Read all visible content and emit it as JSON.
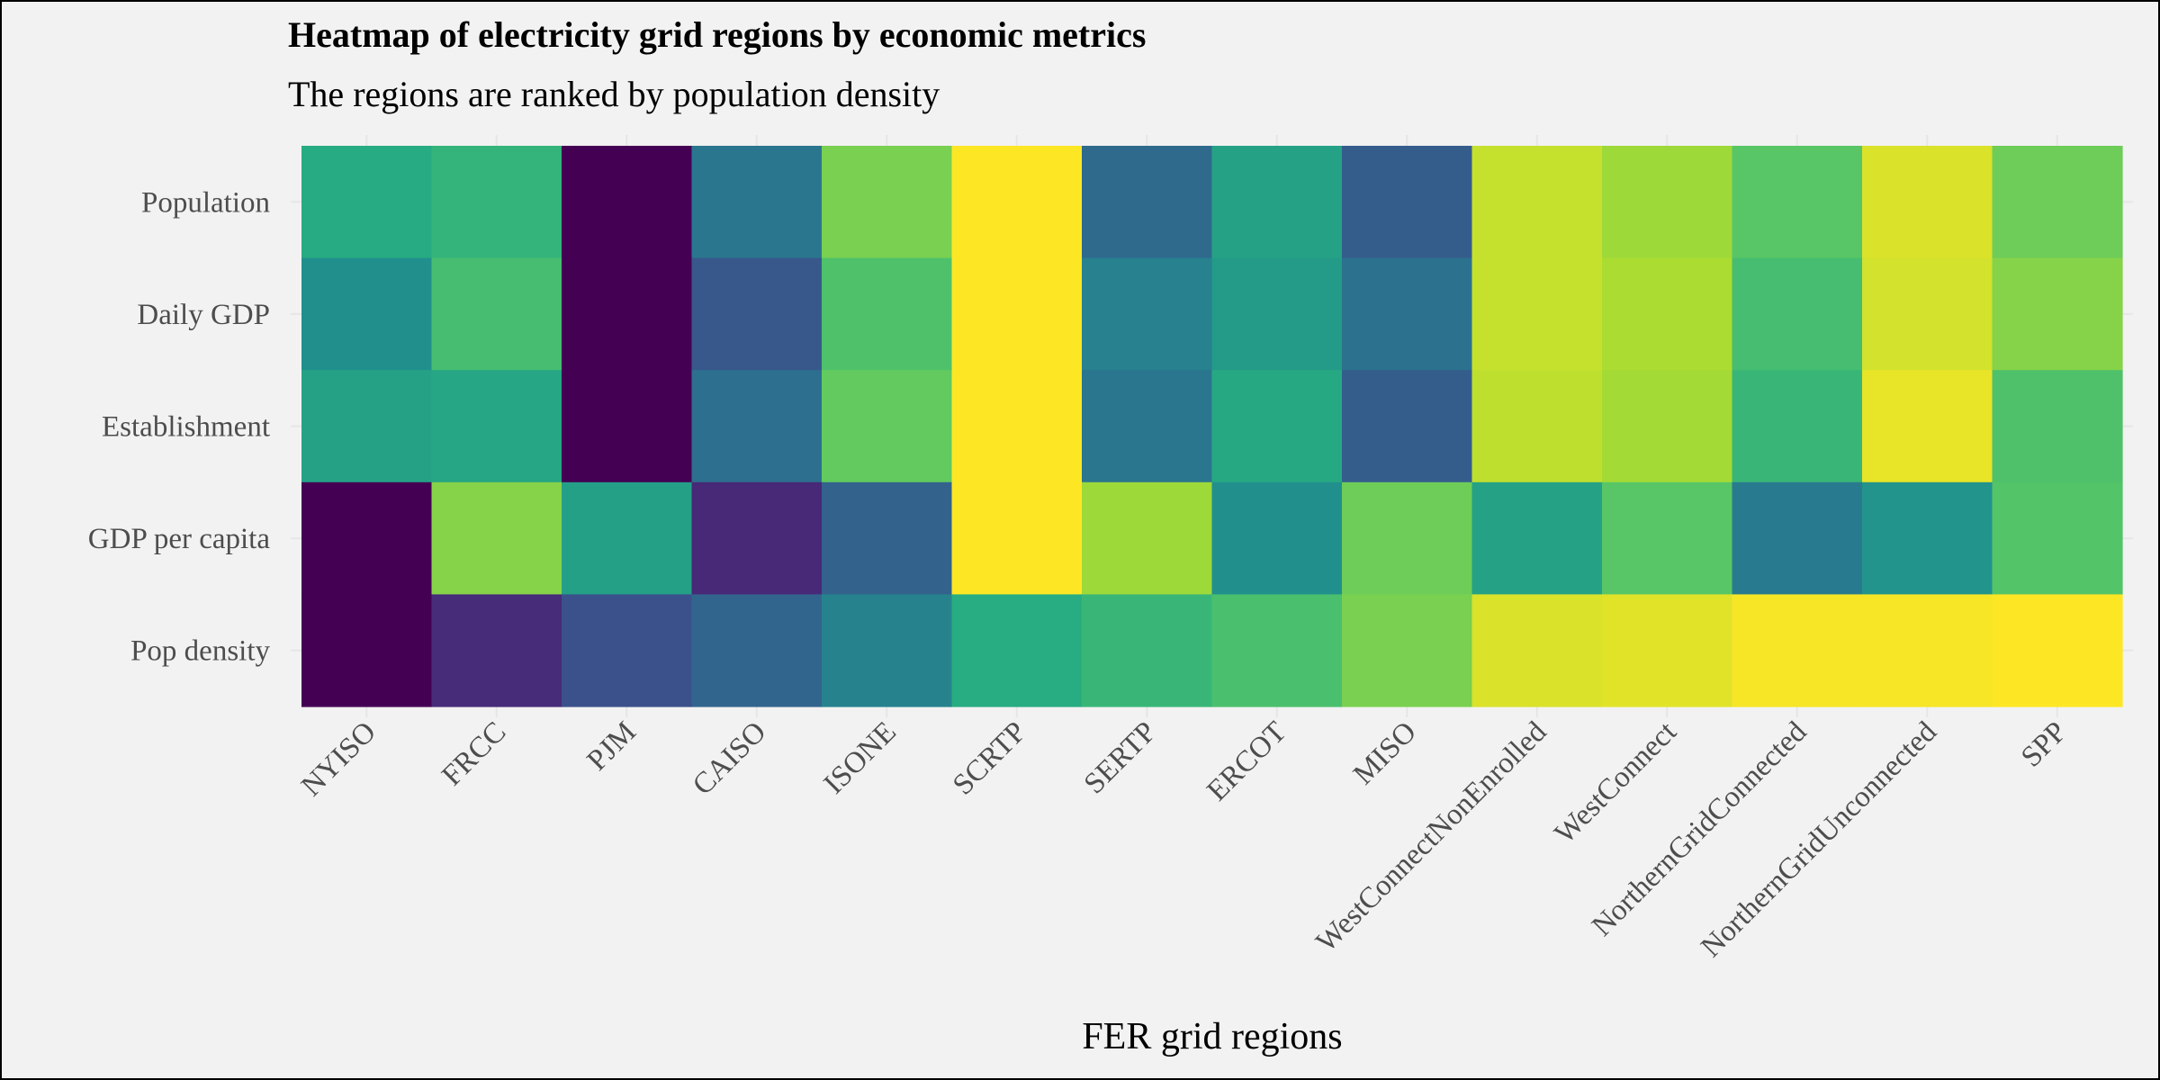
{
  "chart_data": {
    "type": "heatmap",
    "title": "Heatmap of electricity grid regions by economic metrics",
    "subtitle": "The regions are ranked by population density",
    "xlabel": "FER grid regions",
    "ylabel": "",
    "x_categories": [
      "NYISO",
      "FRCC",
      "PJM",
      "CAISO",
      "ISONE",
      "SCRTP",
      "SERTP",
      "ERCOT",
      "MISO",
      "WestConnectNonEnrolled",
      "WestConnect",
      "NorthernGridConnected",
      "NorthernGridUnconnected",
      "SPP"
    ],
    "y_categories": [
      "Population",
      "Daily GDP",
      "Establishment",
      "GDP per capita",
      "Pop density"
    ],
    "colormap": "viridis",
    "value_scale": [
      0,
      1
    ],
    "grid": true,
    "legend": "none",
    "values": [
      [
        0.62,
        0.66,
        0.0,
        0.4,
        0.8,
        1.0,
        0.35,
        0.58,
        0.3,
        0.92,
        0.86,
        0.74,
        0.95,
        0.78
      ],
      [
        0.5,
        0.7,
        0.0,
        0.28,
        0.72,
        1.0,
        0.44,
        0.55,
        0.38,
        0.92,
        0.88,
        0.7,
        0.94,
        0.82
      ],
      [
        0.58,
        0.6,
        0.0,
        0.37,
        0.76,
        1.0,
        0.4,
        0.61,
        0.3,
        0.91,
        0.87,
        0.67,
        0.97,
        0.72
      ],
      [
        0.0,
        0.82,
        0.57,
        0.12,
        0.32,
        1.0,
        0.86,
        0.5,
        0.78,
        0.58,
        0.74,
        0.42,
        0.52,
        0.73
      ],
      [
        0.0,
        0.13,
        0.25,
        0.33,
        0.45,
        0.63,
        0.67,
        0.71,
        0.8,
        0.95,
        0.96,
        0.99,
        0.99,
        1.0
      ]
    ]
  }
}
